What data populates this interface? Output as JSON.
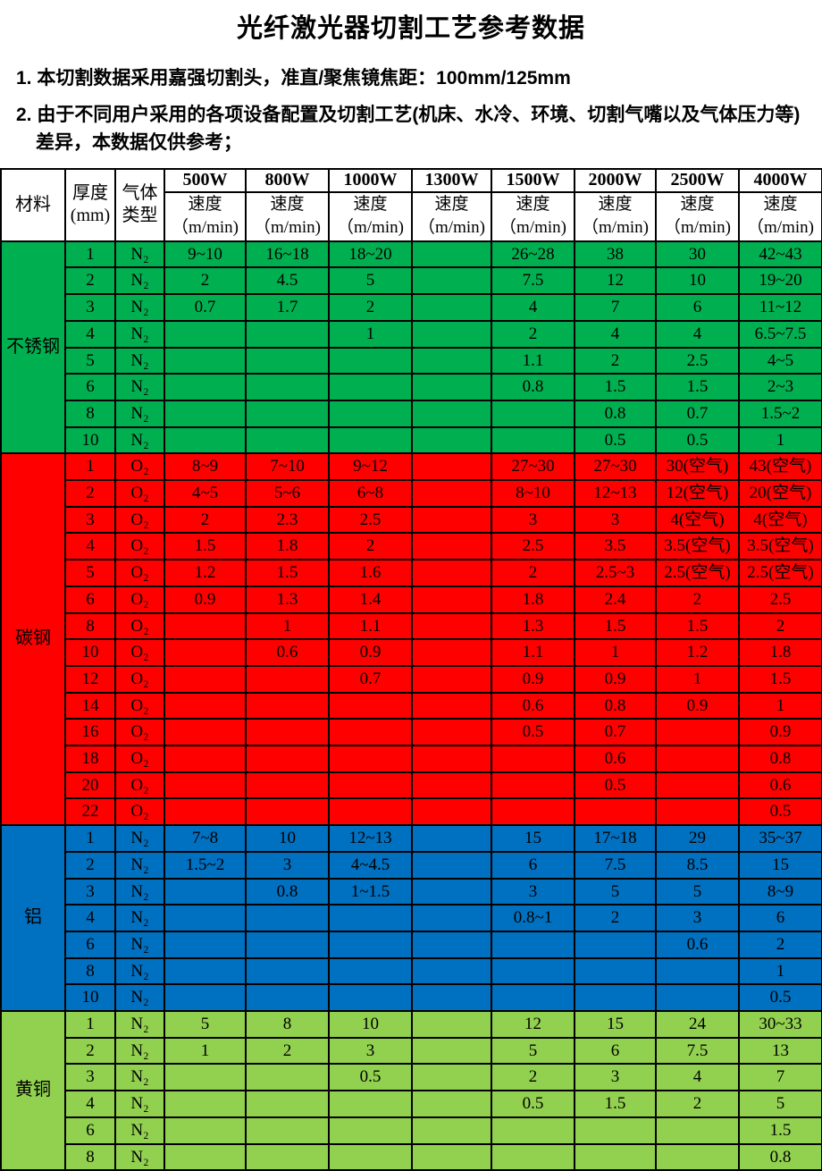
{
  "title": "光纤激光器切割工艺参考数据",
  "notes": [
    "1. 本切割数据采用嘉强切割头，准直/聚焦镜焦距：100mm/125mm",
    "2. 由于不同用户采用的各项设备配置及切割工艺(机床、水冷、环境、切割气嘴以及气体压力等)差异，本数据仅供参考；"
  ],
  "table": {
    "header": {
      "material": "材料",
      "thickness": "厚度\n(mm)",
      "gas": "气体\n类型",
      "powers": [
        "500W",
        "800W",
        "1000W",
        "1300W",
        "1500W",
        "2000W",
        "2500W",
        "4000W"
      ],
      "speed": "速度\n（m/min)"
    },
    "sections": [
      {
        "material": "不锈钢",
        "color": "#00B050",
        "rows": [
          {
            "t": "1",
            "gas": "N₂",
            "v": [
              "9~10",
              "16~18",
              "18~20",
              "",
              "26~28",
              "38",
              "30",
              "42~43"
            ]
          },
          {
            "t": "2",
            "gas": "N₂",
            "v": [
              "2",
              "4.5",
              "5",
              "",
              "7.5",
              "12",
              "10",
              "19~20"
            ]
          },
          {
            "t": "3",
            "gas": "N₂",
            "v": [
              "0.7",
              "1.7",
              "2",
              "",
              "4",
              "7",
              "6",
              "11~12"
            ]
          },
          {
            "t": "4",
            "gas": "N₂",
            "v": [
              "",
              "",
              "1",
              "",
              "2",
              "4",
              "4",
              "6.5~7.5"
            ]
          },
          {
            "t": "5",
            "gas": "N₂",
            "v": [
              "",
              "",
              "",
              "",
              "1.1",
              "2",
              "2.5",
              "4~5"
            ]
          },
          {
            "t": "6",
            "gas": "N₂",
            "v": [
              "",
              "",
              "",
              "",
              "0.8",
              "1.5",
              "1.5",
              "2~3"
            ]
          },
          {
            "t": "8",
            "gas": "N₂",
            "v": [
              "",
              "",
              "",
              "",
              "",
              "0.8",
              "0.7",
              "1.5~2"
            ]
          },
          {
            "t": "10",
            "gas": "N₂",
            "v": [
              "",
              "",
              "",
              "",
              "",
              "0.5",
              "0.5",
              "1"
            ]
          }
        ]
      },
      {
        "material": "碳钢",
        "color": "#FF0000",
        "rows": [
          {
            "t": "1",
            "gas": "O₂",
            "v": [
              "8~9",
              "7~10",
              "9~12",
              "",
              "27~30",
              "27~30",
              "30(空气)",
              "43(空气)"
            ]
          },
          {
            "t": "2",
            "gas": "O₂",
            "v": [
              "4~5",
              "5~6",
              "6~8",
              "",
              "8~10",
              "12~13",
              "12(空气)",
              "20(空气)"
            ]
          },
          {
            "t": "3",
            "gas": "O₂",
            "v": [
              "2",
              "2.3",
              "2.5",
              "",
              "3",
              "3",
              "4(空气)",
              "4(空气)"
            ]
          },
          {
            "t": "4",
            "gas": "O₂",
            "v": [
              "1.5",
              "1.8",
              "2",
              "",
              "2.5",
              "3.5",
              "3.5(空气)",
              "3.5(空气)"
            ]
          },
          {
            "t": "5",
            "gas": "O₂",
            "v": [
              "1.2",
              "1.5",
              "1.6",
              "",
              "2",
              "2.5~3",
              "2.5(空气)",
              "2.5(空气)"
            ]
          },
          {
            "t": "6",
            "gas": "O₂",
            "v": [
              "0.9",
              "1.3",
              "1.4",
              "",
              "1.8",
              "2.4",
              "2",
              "2.5"
            ]
          },
          {
            "t": "8",
            "gas": "O₂",
            "v": [
              "",
              "1",
              "1.1",
              "",
              "1.3",
              "1.5",
              "1.5",
              "2"
            ]
          },
          {
            "t": "10",
            "gas": "O₂",
            "v": [
              "",
              "0.6",
              "0.9",
              "",
              "1.1",
              "1",
              "1.2",
              "1.8"
            ]
          },
          {
            "t": "12",
            "gas": "O₂",
            "v": [
              "",
              "",
              "0.7",
              "",
              "0.9",
              "0.9",
              "1",
              "1.5"
            ]
          },
          {
            "t": "14",
            "gas": "O₂",
            "v": [
              "",
              "",
              "",
              "",
              "0.6",
              "0.8",
              "0.9",
              "1"
            ]
          },
          {
            "t": "16",
            "gas": "O₂",
            "v": [
              "",
              "",
              "",
              "",
              "0.5",
              "0.7",
              "",
              "0.9"
            ]
          },
          {
            "t": "18",
            "gas": "O₂",
            "v": [
              "",
              "",
              "",
              "",
              "",
              "0.6",
              "",
              "0.8"
            ]
          },
          {
            "t": "20",
            "gas": "O₂",
            "v": [
              "",
              "",
              "",
              "",
              "",
              "0.5",
              "",
              "0.6"
            ]
          },
          {
            "t": "22",
            "gas": "O₂",
            "v": [
              "",
              "",
              "",
              "",
              "",
              "",
              "",
              "0.5"
            ]
          }
        ]
      },
      {
        "material": "铝",
        "color": "#0070C0",
        "rows": [
          {
            "t": "1",
            "gas": "N₂",
            "v": [
              "7~8",
              "10",
              "12~13",
              "",
              "15",
              "17~18",
              "29",
              "35~37"
            ]
          },
          {
            "t": "2",
            "gas": "N₂",
            "v": [
              "1.5~2",
              "3",
              "4~4.5",
              "",
              "6",
              "7.5",
              "8.5",
              "15"
            ]
          },
          {
            "t": "3",
            "gas": "N₂",
            "v": [
              "",
              "0.8",
              "1~1.5",
              "",
              "3",
              "5",
              "5",
              "8~9"
            ]
          },
          {
            "t": "4",
            "gas": "N₂",
            "v": [
              "",
              "",
              "",
              "",
              "0.8~1",
              "2",
              "3",
              "6"
            ]
          },
          {
            "t": "6",
            "gas": "N₂",
            "v": [
              "",
              "",
              "",
              "",
              "",
              "",
              "0.6",
              "2"
            ]
          },
          {
            "t": "8",
            "gas": "N₂",
            "v": [
              "",
              "",
              "",
              "",
              "",
              "",
              "",
              "1"
            ]
          },
          {
            "t": "10",
            "gas": "N₂",
            "v": [
              "",
              "",
              "",
              "",
              "",
              "",
              "",
              "0.5"
            ]
          }
        ]
      },
      {
        "material": "黄铜",
        "color": "#92D050",
        "rows": [
          {
            "t": "1",
            "gas": "N₂",
            "v": [
              "5",
              "8",
              "10",
              "",
              "12",
              "15",
              "24",
              "30~33"
            ]
          },
          {
            "t": "2",
            "gas": "N₂",
            "v": [
              "1",
              "2",
              "3",
              "",
              "5",
              "6",
              "7.5",
              "13"
            ]
          },
          {
            "t": "3",
            "gas": "N₂",
            "v": [
              "",
              "",
              "0.5",
              "",
              "2",
              "3",
              "4",
              "7"
            ]
          },
          {
            "t": "4",
            "gas": "N₂",
            "v": [
              "",
              "",
              "",
              "",
              "0.5",
              "1.5",
              "2",
              "5"
            ]
          },
          {
            "t": "6",
            "gas": "N₂",
            "v": [
              "",
              "",
              "",
              "",
              "",
              "",
              "",
              "1.5"
            ]
          },
          {
            "t": "8",
            "gas": "N₂",
            "v": [
              "",
              "",
              "",
              "",
              "",
              "",
              "",
              "0.8"
            ]
          }
        ]
      }
    ]
  }
}
